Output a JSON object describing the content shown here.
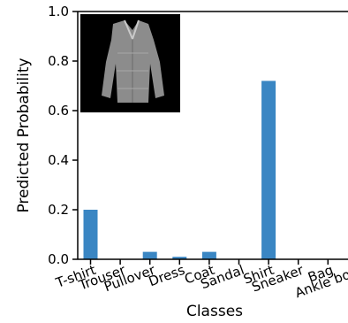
{
  "chart_data": {
    "type": "bar",
    "xlabel": "Classes",
    "ylabel": "Predicted Probability",
    "ylim": [
      0.0,
      1.0
    ],
    "yticks": [
      "0.0",
      "0.2",
      "0.4",
      "0.6",
      "0.8",
      "1.0"
    ],
    "categories": [
      "T-shirt",
      "Trouser",
      "Pullover",
      "Dress",
      "Coat",
      "Sandal",
      "Shirt",
      "Sneaker",
      "Bag",
      "Ankle boot"
    ],
    "values": [
      0.2,
      0.0,
      0.03,
      0.01,
      0.03,
      0.0,
      0.72,
      0.0,
      0.0,
      0.0
    ],
    "bar_color": "#3a86c3",
    "inset_image": "grayscale thumbnail of a long-sleeve shirt"
  }
}
